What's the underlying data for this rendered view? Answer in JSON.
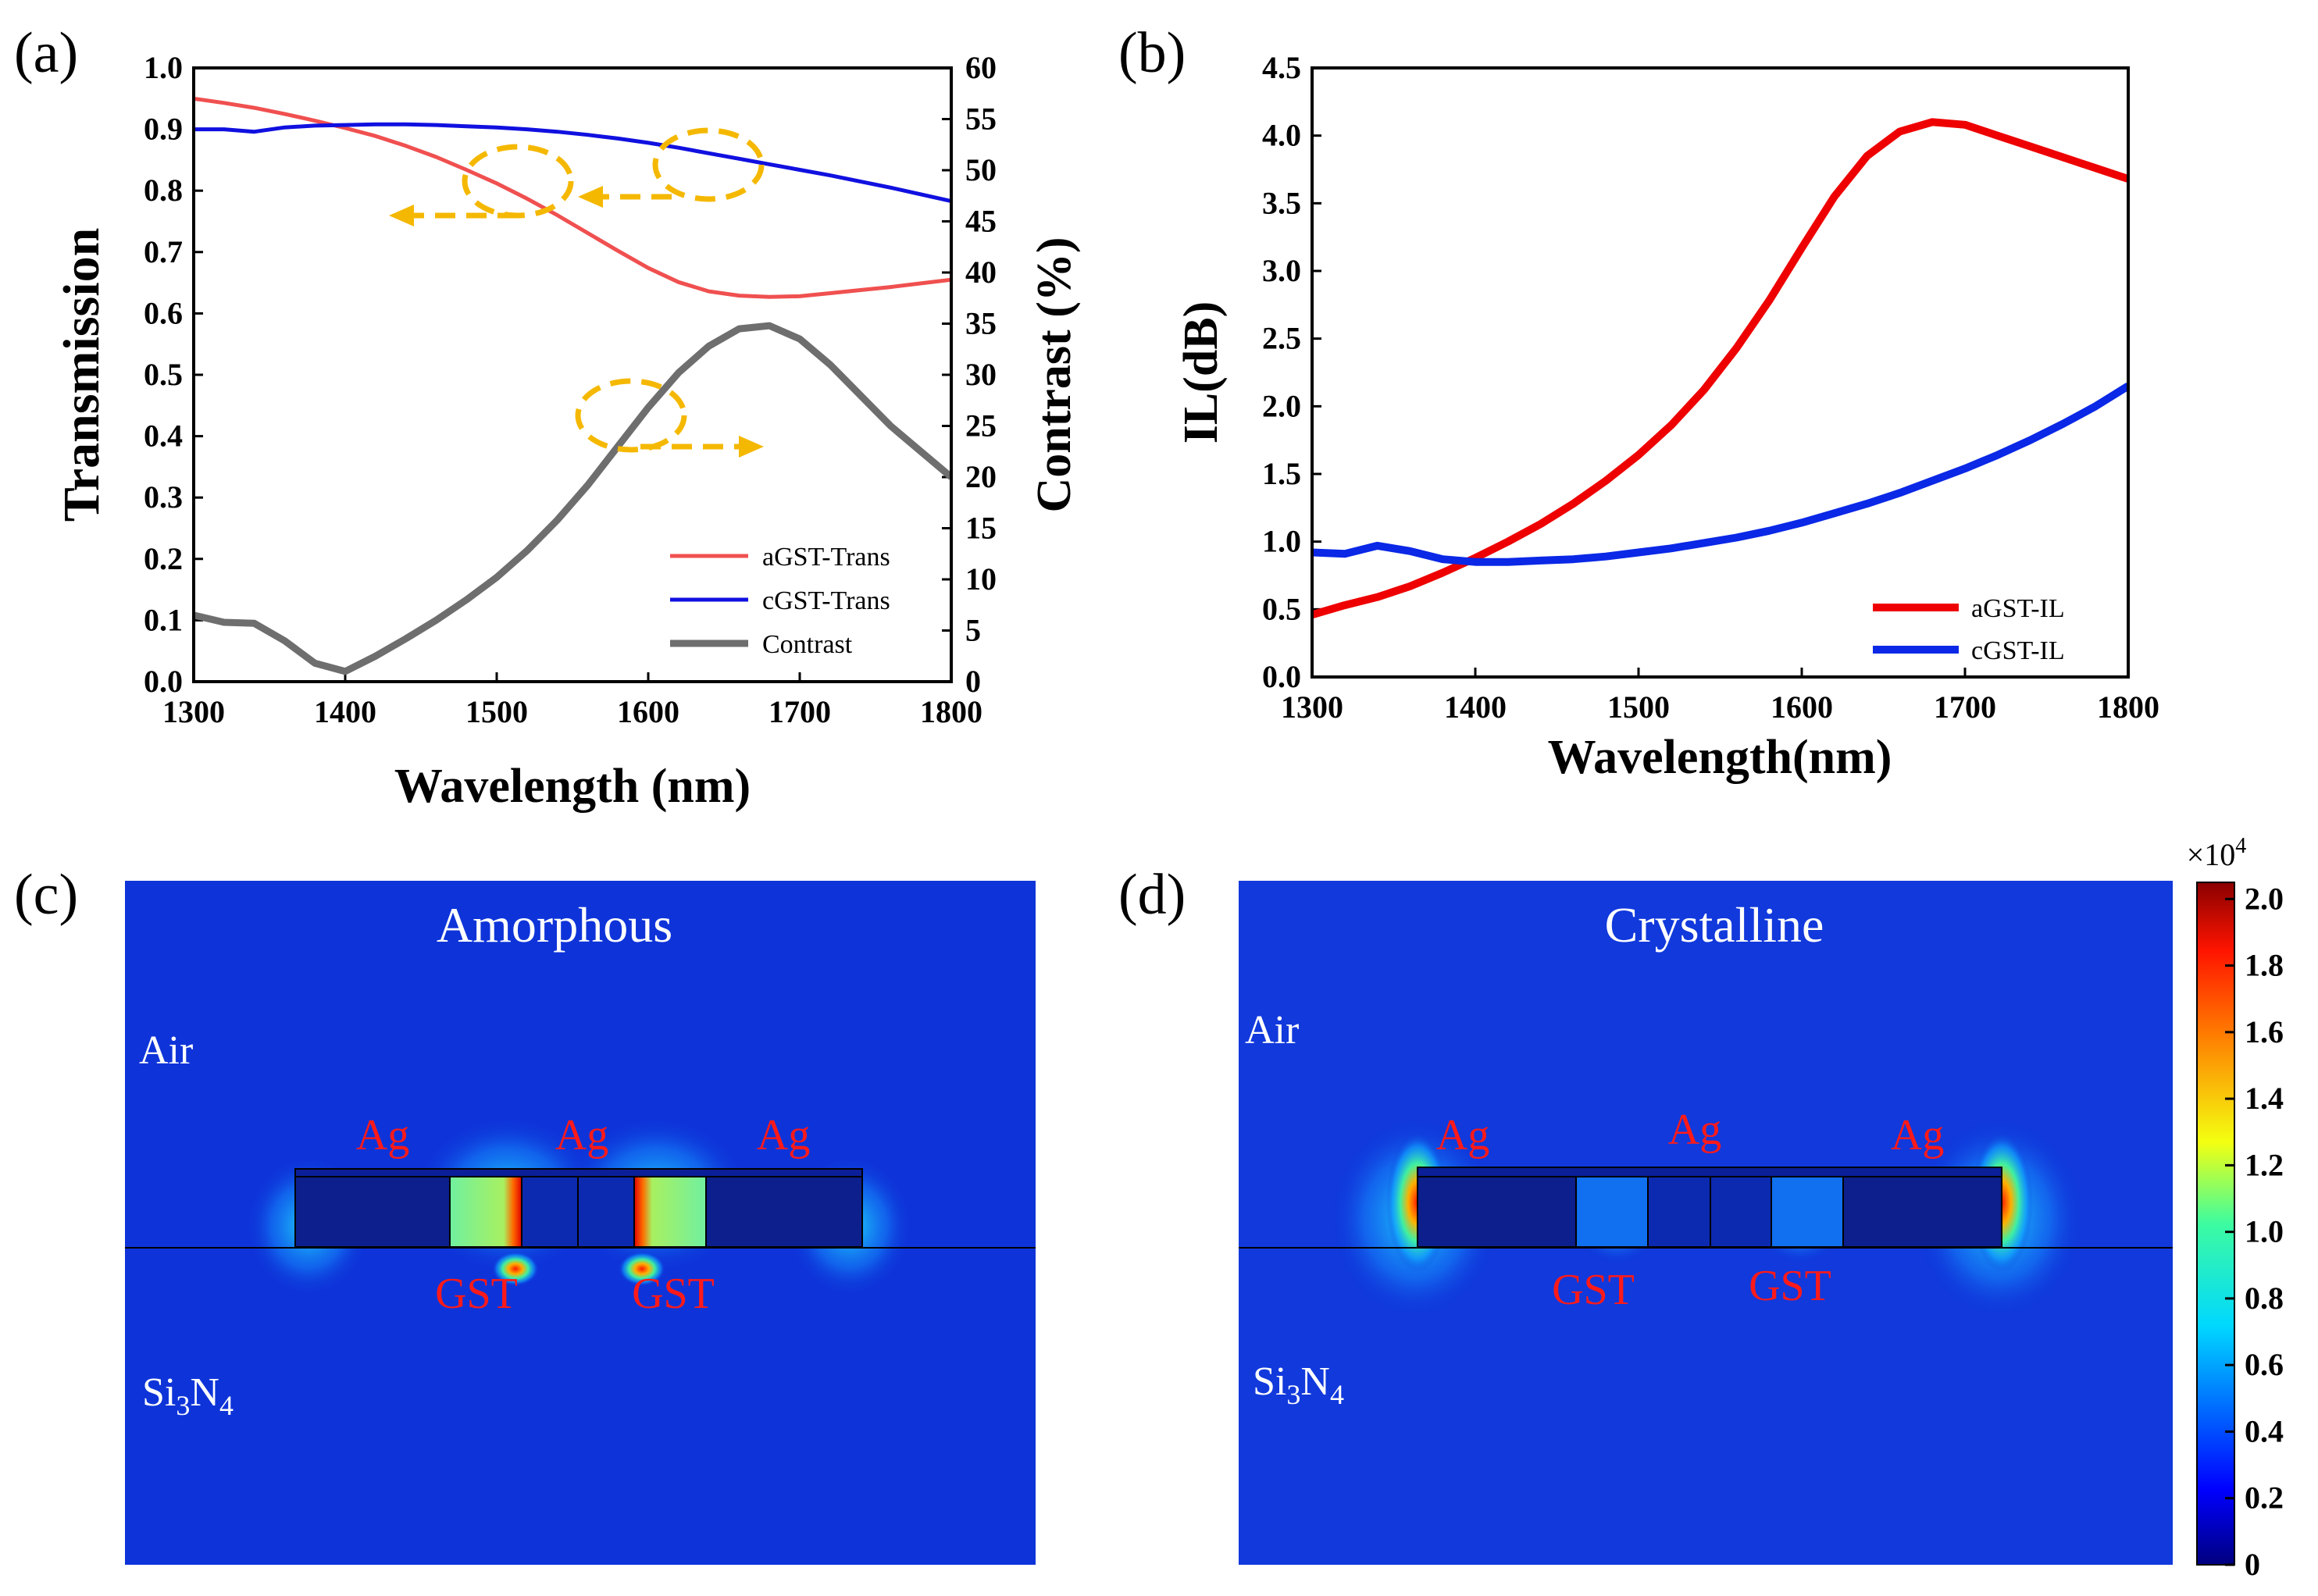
{
  "panels": {
    "a": "(a)",
    "b": "(b)",
    "c": "(c)",
    "d": "(d)"
  },
  "colors": {
    "red": "#f05050",
    "blue": "#1010e0",
    "gray": "#6e6e6e",
    "red_b": "#ee0000",
    "blue_b": "#0a28e6",
    "arrow": "#f5b800",
    "field_bg": "#0a2fd6",
    "label_red": "#ff1a1a"
  },
  "chart_data": [
    {
      "type": "line",
      "panel": "(a)",
      "xlabel": "Wavelength (nm)",
      "ylabel": "Transmission",
      "y2label": "Contrast (%)",
      "xlim": [
        1300,
        1800
      ],
      "ylim": [
        0,
        1.0
      ],
      "y2lim": [
        0,
        60
      ],
      "xticks": [
        "1300",
        "1400",
        "1500",
        "1600",
        "1700",
        "1800"
      ],
      "yticks": [
        "0.0",
        "0.1",
        "0.2",
        "0.3",
        "0.4",
        "0.5",
        "0.6",
        "0.7",
        "0.8",
        "0.9",
        "1.0"
      ],
      "y2ticks": [
        "0",
        "5",
        "10",
        "15",
        "20",
        "25",
        "30",
        "35",
        "40",
        "45",
        "50",
        "55",
        "60"
      ],
      "legend_position": "bottom-right",
      "x": [
        1300,
        1320,
        1340,
        1360,
        1380,
        1400,
        1420,
        1440,
        1460,
        1480,
        1500,
        1520,
        1540,
        1560,
        1580,
        1600,
        1620,
        1640,
        1660,
        1680,
        1700,
        1720,
        1740,
        1760,
        1780,
        1800
      ],
      "series": [
        {
          "name": "aGST-Trans",
          "axis": "left",
          "color": "#f05050",
          "values": [
            0.95,
            0.943,
            0.935,
            0.925,
            0.914,
            0.902,
            0.889,
            0.873,
            0.855,
            0.834,
            0.812,
            0.787,
            0.76,
            0.731,
            0.702,
            0.674,
            0.651,
            0.636,
            0.629,
            0.627,
            0.628,
            0.633,
            0.638,
            0.643,
            0.649,
            0.655
          ]
        },
        {
          "name": "cGST-Trans",
          "axis": "left",
          "color": "#1010e0",
          "values": [
            0.9,
            0.9,
            0.896,
            0.903,
            0.906,
            0.907,
            0.908,
            0.908,
            0.907,
            0.905,
            0.903,
            0.9,
            0.896,
            0.891,
            0.885,
            0.878,
            0.87,
            0.861,
            0.852,
            0.843,
            0.834,
            0.825,
            0.815,
            0.805,
            0.794,
            0.783
          ]
        },
        {
          "name": "Contrast",
          "axis": "right",
          "color": "#6e6e6e",
          "values": [
            6.5,
            5.8,
            5.7,
            4.0,
            1.8,
            1.0,
            2.5,
            4.2,
            6.0,
            8.0,
            10.2,
            12.8,
            15.8,
            19.2,
            23.0,
            26.8,
            30.2,
            32.8,
            34.5,
            34.8,
            33.5,
            31.0,
            28.0,
            25.0,
            22.5,
            20.0
          ]
        }
      ]
    },
    {
      "type": "line",
      "panel": "(b)",
      "xlabel": "Wavelength(nm)",
      "ylabel": "IL(dB)",
      "xlim": [
        1300,
        1800
      ],
      "ylim": [
        0,
        4.5
      ],
      "xticks": [
        "1300",
        "1400",
        "1500",
        "1600",
        "1700",
        "1800"
      ],
      "yticks": [
        "0.0",
        "0.5",
        "1.0",
        "1.5",
        "2.0",
        "2.5",
        "3.0",
        "3.5",
        "4.0",
        "4.5"
      ],
      "legend_position": "bottom-right",
      "x": [
        1300,
        1320,
        1340,
        1360,
        1380,
        1400,
        1420,
        1440,
        1460,
        1480,
        1500,
        1520,
        1540,
        1560,
        1580,
        1600,
        1620,
        1640,
        1660,
        1680,
        1700,
        1720,
        1740,
        1760,
        1780,
        1800
      ],
      "series": [
        {
          "name": "aGST-IL",
          "color": "#ee0000",
          "values": [
            0.46,
            0.53,
            0.59,
            0.67,
            0.77,
            0.88,
            1.0,
            1.13,
            1.28,
            1.45,
            1.64,
            1.86,
            2.12,
            2.43,
            2.78,
            3.17,
            3.55,
            3.85,
            4.03,
            4.1,
            4.08,
            4.0,
            3.92,
            3.84,
            3.76,
            3.68
          ]
        },
        {
          "name": "cGST-IL",
          "color": "#0a28e6",
          "values": [
            0.92,
            0.91,
            0.97,
            0.93,
            0.87,
            0.85,
            0.85,
            0.86,
            0.87,
            0.89,
            0.92,
            0.95,
            0.99,
            1.03,
            1.08,
            1.14,
            1.21,
            1.28,
            1.36,
            1.45,
            1.54,
            1.64,
            1.75,
            1.87,
            2.0,
            2.15
          ]
        }
      ]
    },
    {
      "type": "heatmap",
      "panel": "(c)",
      "title": "Amorphous",
      "labels": {
        "air": "Air",
        "si3n4_base": "Si",
        "si3n4_sub1": "3",
        "si3n4_mid": "N",
        "si3n4_sub2": "4",
        "ag1": "Ag",
        "ag2": "Ag",
        "ag3": "Ag",
        "gst1": "GST",
        "gst2": "GST"
      }
    },
    {
      "type": "heatmap",
      "panel": "(d)",
      "title": "Crystalline",
      "labels": {
        "air": "Air",
        "si3n4_base": "Si",
        "si3n4_sub1": "3",
        "si3n4_mid": "N",
        "si3n4_sub2": "4",
        "ag1": "Ag",
        "ag2": "Ag",
        "ag3": "Ag",
        "gst1": "GST",
        "gst2": "GST"
      }
    }
  ],
  "colorbar": {
    "multiplier": "×10",
    "exponent": "4",
    "ticks": [
      "2.0",
      "1.8",
      "1.6",
      "1.4",
      "1.2",
      "1.0",
      "0.8",
      "0.6",
      "0.4",
      "0.2",
      "0"
    ],
    "range": [
      0,
      2.05
    ]
  }
}
